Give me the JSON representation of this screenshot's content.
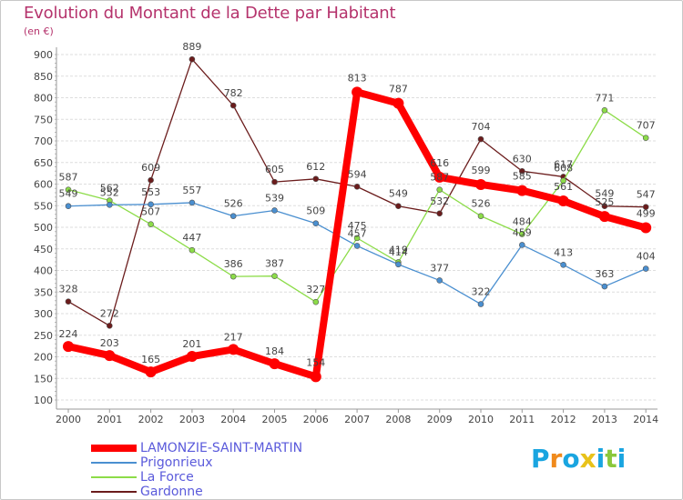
{
  "chart_data": {
    "type": "line",
    "title": "Evolution du Montant de la Dette par Habitant",
    "subtitle": "(en €)",
    "categories": [
      "2000",
      "2001",
      "2002",
      "2003",
      "2004",
      "2005",
      "2006",
      "2007",
      "2008",
      "2009",
      "2010",
      "2011",
      "2012",
      "2013",
      "2014"
    ],
    "ylim": [
      100,
      900
    ],
    "yticks": [
      100,
      150,
      200,
      250,
      300,
      350,
      400,
      450,
      500,
      550,
      600,
      650,
      700,
      750,
      800,
      850,
      900
    ],
    "grid": "horizontal",
    "legend_position": "bottom-left",
    "series": [
      {
        "name": "LAMONZIE-SAINT-MARTIN",
        "color": "#ff0000",
        "values": [
          224,
          203,
          165,
          201,
          217,
          184,
          154,
          813,
          787,
          616,
          599,
          585,
          561,
          525,
          499
        ]
      },
      {
        "name": "Prigonrieux",
        "color": "#4a8fd0",
        "values": [
          549,
          552,
          553,
          557,
          526,
          539,
          509,
          457,
          414,
          377,
          322,
          459,
          413,
          363,
          404
        ]
      },
      {
        "name": "La Force",
        "color": "#8cdc48",
        "values": [
          587,
          562,
          507,
          447,
          386,
          387,
          327,
          475,
          419,
          587,
          526,
          484,
          608,
          771,
          707
        ]
      },
      {
        "name": "Gardonne",
        "color": "#6b1c1c",
        "values": [
          328,
          272,
          609,
          889,
          782,
          605,
          612,
          594,
          549,
          532,
          704,
          630,
          617,
          549,
          547
        ]
      }
    ]
  },
  "logo": {
    "text": "Proxiti",
    "letters": [
      "P",
      "r",
      "o",
      "x",
      "i",
      "t",
      "i"
    ],
    "colors": [
      "#1aa5e0",
      "#f08a1c",
      "#1aa5e0",
      "#e8c21a",
      "#1aa5e0",
      "#8ac83c",
      "#1aa5e0"
    ]
  }
}
